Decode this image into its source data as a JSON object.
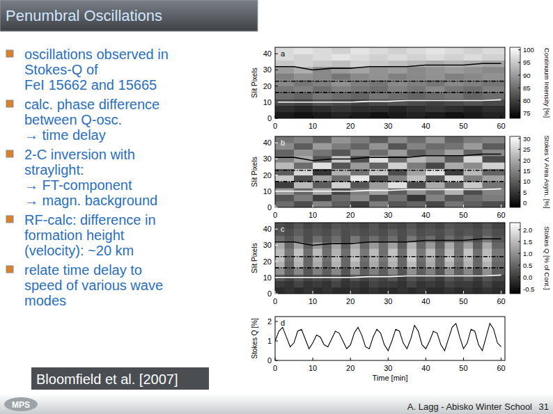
{
  "slide": {
    "title": "Penumbral Oscillations",
    "bullets": [
      [
        "oscillations observed in",
        "Stokes-Q of",
        "FeI 15662 and 15665"
      ],
      [
        "calc. phase difference",
        "between Q-osc.",
        "→ time delay"
      ],
      [
        "2-C inversion with",
        "straylight:",
        "→ FT-component",
        "→ magn. background"
      ],
      [
        "RF-calc: difference in",
        "formation height",
        "(velocity): ~20 km"
      ],
      [
        "relate time delay to",
        "speed of various wave",
        "modes"
      ]
    ],
    "citation": "Bloomfield et al. [2007]",
    "logo": "MPS",
    "footer": "A. Lagg - Abisko Winter School",
    "page": 31
  },
  "chart_data": [
    {
      "type": "heatmap",
      "panel_label": "a",
      "ylabel": "Slit Pixels",
      "xlim": [
        0,
        61
      ],
      "ylim": [
        0,
        44
      ],
      "xticks": [
        0,
        10,
        20,
        30,
        40,
        50,
        60
      ],
      "yticks": [
        0,
        10,
        20,
        30,
        40
      ],
      "xbins": [
        0,
        5,
        10,
        15,
        20,
        25,
        30,
        35,
        40,
        45,
        50,
        55,
        61
      ],
      "ybins": [
        0,
        4,
        8,
        12,
        16,
        20,
        24,
        28,
        32,
        36,
        40,
        44
      ],
      "cells": [
        [
          76,
          75,
          76,
          77,
          76,
          75,
          76,
          77,
          76,
          75,
          76,
          77
        ],
        [
          78,
          77,
          78,
          79,
          78,
          78,
          77,
          78,
          79,
          78,
          77,
          78
        ],
        [
          81,
          80,
          82,
          81,
          80,
          81,
          82,
          81,
          80,
          81,
          82,
          81
        ],
        [
          85,
          84,
          86,
          85,
          84,
          86,
          85,
          84,
          85,
          86,
          84,
          85
        ],
        [
          86,
          87,
          85,
          87,
          86,
          85,
          87,
          86,
          88,
          86,
          85,
          87
        ],
        [
          88,
          86,
          87,
          89,
          87,
          86,
          88,
          87,
          86,
          88,
          87,
          86
        ],
        [
          87,
          89,
          88,
          86,
          88,
          89,
          87,
          88,
          89,
          87,
          88,
          89
        ],
        [
          90,
          92,
          88,
          90,
          91,
          89,
          90,
          88,
          89,
          90,
          89,
          88
        ],
        [
          95,
          96,
          95,
          94,
          96,
          95,
          94,
          93,
          92,
          93,
          92,
          91
        ],
        [
          97,
          96,
          97,
          98,
          97,
          96,
          97,
          96,
          97,
          96,
          97,
          96
        ],
        [
          97,
          98,
          97,
          96,
          98,
          97,
          96,
          97,
          98,
          97,
          96,
          97
        ]
      ],
      "colorbar": {
        "label": "Continuum Intensity [%]",
        "range": [
          73,
          101
        ],
        "ticks": [
          75,
          80,
          85,
          90,
          95,
          100
        ]
      },
      "lines": [
        {
          "color": "#000000",
          "line_style": "solid",
          "x": [
            0,
            5,
            10,
            15,
            20,
            25,
            30,
            35,
            40,
            45,
            50,
            55,
            60
          ],
          "values": [
            32,
            32,
            30,
            31,
            31,
            32,
            32,
            32,
            33,
            33,
            33,
            34,
            34
          ]
        },
        {
          "color": "#000000",
          "line_style": "dashdot",
          "x": [
            0,
            61
          ],
          "values": [
            23,
            23
          ]
        },
        {
          "color": "#000000",
          "line_style": "dashdot",
          "x": [
            0,
            61
          ],
          "values": [
            16,
            16
          ]
        },
        {
          "color": "#ffffff",
          "line_style": "solid",
          "x": [
            0,
            5,
            10,
            15,
            20,
            25,
            30,
            35,
            40,
            45,
            50,
            55,
            60
          ],
          "values": [
            10,
            10,
            10,
            10,
            10,
            10.5,
            10.5,
            11,
            11,
            11,
            11,
            11,
            11.5
          ]
        }
      ]
    },
    {
      "type": "heatmap",
      "panel_label": "b",
      "ylabel": "Slit Pixels",
      "xlim": [
        0,
        61
      ],
      "ylim": [
        0,
        44
      ],
      "xticks": [
        0,
        10,
        20,
        30,
        40,
        50,
        60
      ],
      "yticks": [
        0,
        10,
        20,
        30,
        40
      ],
      "xbins": [
        0,
        5,
        10,
        15,
        20,
        25,
        30,
        35,
        40,
        45,
        50,
        55,
        61
      ],
      "ybins": [
        0,
        4,
        8,
        12,
        16,
        20,
        24,
        28,
        32,
        36,
        40,
        44
      ],
      "cells": [
        [
          12,
          8,
          15,
          10,
          6,
          14,
          9,
          11,
          7,
          13,
          10,
          8
        ],
        [
          9,
          14,
          6,
          12,
          16,
          8,
          13,
          5,
          15,
          9,
          12,
          14
        ],
        [
          18,
          11,
          20,
          7,
          14,
          19,
          10,
          17,
          12,
          21,
          8,
          15
        ],
        [
          6,
          22,
          10,
          25,
          9,
          18,
          27,
          8,
          20,
          11,
          24,
          13
        ],
        [
          24,
          8,
          19,
          12,
          28,
          7,
          15,
          23,
          9,
          26,
          14,
          19
        ],
        [
          10,
          26,
          5,
          21,
          13,
          24,
          8,
          19,
          27,
          6,
          22,
          11
        ],
        [
          22,
          12,
          27,
          9,
          18,
          11,
          25,
          14,
          7,
          20,
          16,
          25
        ],
        [
          15,
          20,
          9,
          24,
          8,
          27,
          12,
          22,
          18,
          10,
          26,
          8
        ],
        [
          11,
          17,
          13,
          9,
          16,
          12,
          18,
          10,
          14,
          19,
          11,
          16
        ],
        [
          16,
          10,
          18,
          14,
          11,
          17,
          9,
          15,
          12,
          13,
          18,
          10
        ],
        [
          13,
          15,
          11,
          17,
          14,
          10,
          16,
          12,
          17,
          11,
          14,
          15
        ]
      ],
      "colorbar": {
        "label": "Stokes V Area Asym. [%]",
        "range": [
          -2,
          31
        ],
        "ticks": [
          0,
          5,
          10,
          15,
          20,
          25,
          30
        ]
      },
      "lines": [
        {
          "color": "#000000",
          "line_style": "solid",
          "x": [
            0,
            5,
            10,
            15,
            20,
            25,
            30,
            35,
            40,
            45,
            50,
            55,
            60
          ],
          "values": [
            31,
            31,
            29,
            30,
            30,
            31,
            31,
            31,
            32,
            32,
            32,
            33,
            33
          ]
        },
        {
          "color": "#000000",
          "line_style": "dashdot",
          "x": [
            0,
            61
          ],
          "values": [
            23,
            23
          ]
        },
        {
          "color": "#000000",
          "line_style": "dashdot",
          "x": [
            0,
            61
          ],
          "values": [
            16,
            16
          ]
        },
        {
          "color": "#ffffff",
          "line_style": "solid",
          "x": [
            0,
            5,
            10,
            15,
            20,
            25,
            30,
            35,
            40,
            45,
            50,
            55,
            60
          ],
          "values": [
            10,
            10,
            10,
            10,
            10,
            10.5,
            10.5,
            11,
            11,
            11,
            11,
            11,
            11.5
          ]
        }
      ]
    },
    {
      "type": "heatmap",
      "panel_label": "c",
      "ylabel": "Slit Pixels",
      "xlim": [
        0,
        61
      ],
      "ylim": [
        0,
        44
      ],
      "xticks": [
        0,
        10,
        20,
        30,
        40,
        50,
        60
      ],
      "yticks": [
        0,
        10,
        20,
        30,
        40
      ],
      "xbins": [
        0,
        2.5,
        5,
        7.5,
        10,
        12.5,
        15,
        17.5,
        20,
        22.5,
        25,
        27.5,
        30,
        32.5,
        35,
        37.5,
        40,
        42.5,
        45,
        47.5,
        50,
        52.5,
        55,
        57.5,
        61
      ],
      "ybins": [
        0,
        4,
        8,
        12,
        16,
        20,
        24,
        28,
        32,
        36,
        40,
        44
      ],
      "cells": [
        [
          -0.2,
          -0.1,
          -0.2,
          -0.1,
          -0.2,
          -0.1,
          -0.2,
          -0.2,
          -0.1,
          -0.2,
          -0.1,
          -0.2,
          -0.2,
          -0.1,
          -0.2,
          -0.1,
          -0.2,
          -0.2,
          -0.1,
          -0.2,
          -0.1,
          -0.2,
          -0.1,
          -0.2
        ],
        [
          0.0,
          -0.1,
          0.1,
          -0.1,
          0.0,
          -0.1,
          0.1,
          -0.1,
          0.0,
          -0.1,
          0.1,
          0.0,
          0.0,
          -0.1,
          0.1,
          -0.1,
          0.0,
          -0.1,
          0.1,
          0.0,
          0.0,
          -0.1,
          0.1,
          -0.1
        ],
        [
          0.3,
          0.1,
          0.3,
          0.1,
          0.2,
          0.1,
          0.3,
          0.0,
          0.3,
          0.1,
          0.2,
          0.1,
          0.3,
          0.0,
          0.3,
          0.1,
          0.2,
          0.0,
          0.3,
          0.1,
          0.3,
          0.0,
          0.3,
          0.1
        ],
        [
          1.0,
          0.4,
          0.9,
          0.3,
          0.8,
          0.4,
          0.9,
          0.3,
          1.0,
          0.4,
          0.8,
          0.4,
          0.9,
          0.3,
          1.0,
          0.4,
          0.8,
          0.3,
          1.0,
          0.4,
          0.9,
          0.3,
          1.0,
          0.4
        ],
        [
          1.4,
          0.5,
          1.4,
          0.5,
          1.3,
          0.5,
          1.4,
          0.5,
          1.4,
          0.5,
          1.3,
          0.6,
          1.4,
          0.5,
          1.5,
          0.5,
          1.3,
          0.5,
          1.4,
          0.6,
          1.4,
          0.5,
          1.4,
          0.5
        ],
        [
          1.6,
          0.6,
          1.5,
          0.5,
          1.4,
          0.6,
          1.5,
          0.5,
          1.6,
          0.6,
          1.4,
          0.7,
          1.5,
          0.5,
          1.7,
          0.6,
          1.4,
          0.5,
          1.6,
          0.7,
          1.5,
          0.5,
          1.6,
          0.6
        ],
        [
          1.5,
          0.7,
          1.6,
          0.6,
          1.5,
          0.6,
          1.4,
          0.6,
          1.5,
          0.7,
          1.5,
          0.6,
          1.6,
          0.6,
          1.6,
          0.7,
          1.5,
          0.6,
          1.5,
          0.6,
          1.6,
          0.6,
          1.5,
          0.7
        ],
        [
          1.3,
          0.5,
          1.2,
          0.4,
          1.1,
          0.5,
          1.2,
          0.4,
          1.3,
          0.5,
          1.1,
          0.6,
          1.2,
          0.4,
          1.4,
          0.5,
          1.1,
          0.4,
          1.3,
          0.6,
          1.2,
          0.4,
          1.3,
          0.5
        ],
        [
          0.6,
          0.3,
          0.6,
          0.2,
          0.6,
          0.3,
          0.6,
          0.2,
          0.7,
          0.3,
          0.6,
          0.3,
          0.6,
          0.2,
          0.7,
          0.3,
          0.6,
          0.2,
          0.6,
          0.3,
          0.6,
          0.2,
          0.7,
          0.3
        ],
        [
          0.3,
          0.2,
          0.4,
          0.2,
          0.3,
          0.2,
          0.4,
          0.2,
          0.3,
          0.2,
          0.3,
          0.2,
          0.4,
          0.2,
          0.4,
          0.2,
          0.3,
          0.2,
          0.4,
          0.2,
          0.3,
          0.2,
          0.4,
          0.2
        ],
        [
          0.2,
          0.1,
          0.3,
          0.1,
          0.2,
          0.1,
          0.3,
          0.2,
          0.2,
          0.1,
          0.3,
          0.1,
          0.2,
          0.1,
          0.3,
          0.1,
          0.2,
          0.1,
          0.3,
          0.2,
          0.2,
          0.1,
          0.3,
          0.1
        ]
      ],
      "colorbar": {
        "label": "Stokes Q [% of Cont.]",
        "range": [
          -0.7,
          2.3
        ],
        "ticks": [
          -0.5,
          {
            "value": 0,
            "label": "0.0"
          },
          0.5,
          {
            "value": 1,
            "label": "1.0"
          },
          1.5,
          {
            "value": 2,
            "label": "2.0"
          }
        ]
      },
      "lines": [
        {
          "color": "#000000",
          "line_style": "solid",
          "x": [
            0,
            5,
            10,
            15,
            20,
            25,
            30,
            35,
            40,
            45,
            50,
            55,
            60
          ],
          "values": [
            32,
            32,
            30,
            31,
            31,
            32,
            32,
            32,
            33,
            33,
            33,
            34,
            34
          ]
        },
        {
          "color": "#000000",
          "line_style": "dashdot",
          "x": [
            0,
            61
          ],
          "values": [
            23,
            23
          ]
        },
        {
          "color": "#000000",
          "line_style": "dashdot",
          "x": [
            0,
            61
          ],
          "values": [
            16,
            16
          ]
        },
        {
          "color": "#ffffff",
          "line_style": "solid",
          "x": [
            0,
            5,
            10,
            15,
            20,
            25,
            30,
            35,
            40,
            45,
            50,
            55,
            60
          ],
          "values": [
            10,
            10,
            10,
            10,
            10,
            10.5,
            10.5,
            11,
            11,
            11,
            11,
            11,
            11.5
          ]
        }
      ]
    },
    {
      "type": "line",
      "panel_label": "d",
      "xlabel": "Time [min]",
      "ylabel": "Stokes Q [%]",
      "xlim": [
        0,
        61
      ],
      "ylim": [
        0,
        2.25
      ],
      "xticks": [
        0,
        10,
        20,
        30,
        40,
        50,
        60
      ],
      "yticks": [
        0,
        1,
        2
      ],
      "x": [
        0,
        1,
        2,
        3,
        4,
        5,
        6,
        7,
        8,
        9,
        10,
        11,
        12,
        13,
        14,
        15,
        16,
        17,
        18,
        19,
        20,
        21,
        22,
        23,
        24,
        25,
        26,
        27,
        28,
        29,
        30,
        31,
        32,
        33,
        34,
        35,
        36,
        37,
        38,
        39,
        40,
        41,
        42,
        43,
        44,
        45,
        46,
        47,
        48,
        49,
        50,
        51,
        52,
        53,
        54,
        55,
        56,
        57,
        58,
        59,
        60
      ],
      "series": [
        {
          "color": "#000000",
          "values": [
            1.0,
            1.5,
            1.7,
            1.2,
            0.7,
            0.9,
            1.5,
            1.6,
            1.1,
            0.6,
            0.9,
            1.3,
            1.2,
            0.8,
            0.7,
            1.1,
            1.5,
            1.4,
            1.0,
            0.6,
            0.8,
            1.4,
            1.7,
            1.3,
            0.7,
            0.6,
            1.2,
            1.6,
            1.4,
            0.8,
            0.5,
            1.0,
            1.6,
            1.5,
            0.9,
            0.6,
            1.1,
            1.8,
            1.5,
            0.8,
            0.6,
            1.0,
            1.5,
            1.4,
            0.8,
            0.5,
            1.1,
            1.7,
            1.9,
            1.2,
            0.6,
            0.9,
            1.6,
            1.5,
            0.8,
            0.5,
            1.2,
            1.9,
            1.6,
            0.9,
            0.7
          ]
        }
      ]
    }
  ]
}
